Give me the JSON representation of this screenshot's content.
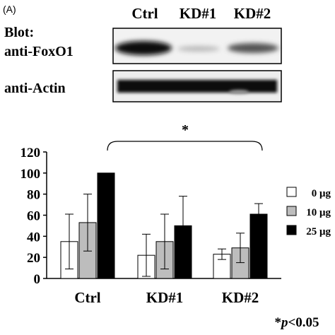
{
  "panel_label": "(A)",
  "blot": {
    "lane_labels": [
      "Ctrl",
      "KD#1",
      "KD#2"
    ],
    "heading": "Blot:",
    "antibodies": [
      "anti-FoxO1",
      "anti-Actin"
    ]
  },
  "chart_data": {
    "type": "bar",
    "categories": [
      "Ctrl",
      "KD#1",
      "KD#2"
    ],
    "ylim": [
      0,
      120
    ],
    "yticks": [
      0,
      20,
      40,
      60,
      80,
      100,
      120
    ],
    "series": [
      {
        "name": "0 μg",
        "color": "#ffffff",
        "values": [
          35,
          22,
          23
        ],
        "errors": [
          26,
          20,
          5
        ]
      },
      {
        "name": "10 μg",
        "color": "#bdbdbd",
        "values": [
          53,
          35,
          29
        ],
        "errors": [
          27,
          26,
          14
        ]
      },
      {
        "name": "25 μg",
        "color": "#000000",
        "values": [
          100,
          50,
          61
        ],
        "errors": [
          0,
          28,
          10
        ]
      }
    ],
    "legend_position": "right",
    "significance": {
      "from": "Ctrl",
      "to": "KD#2",
      "mark": "*"
    },
    "footnote": {
      "star": "*",
      "p": "p",
      "rest": "<0.05"
    }
  }
}
